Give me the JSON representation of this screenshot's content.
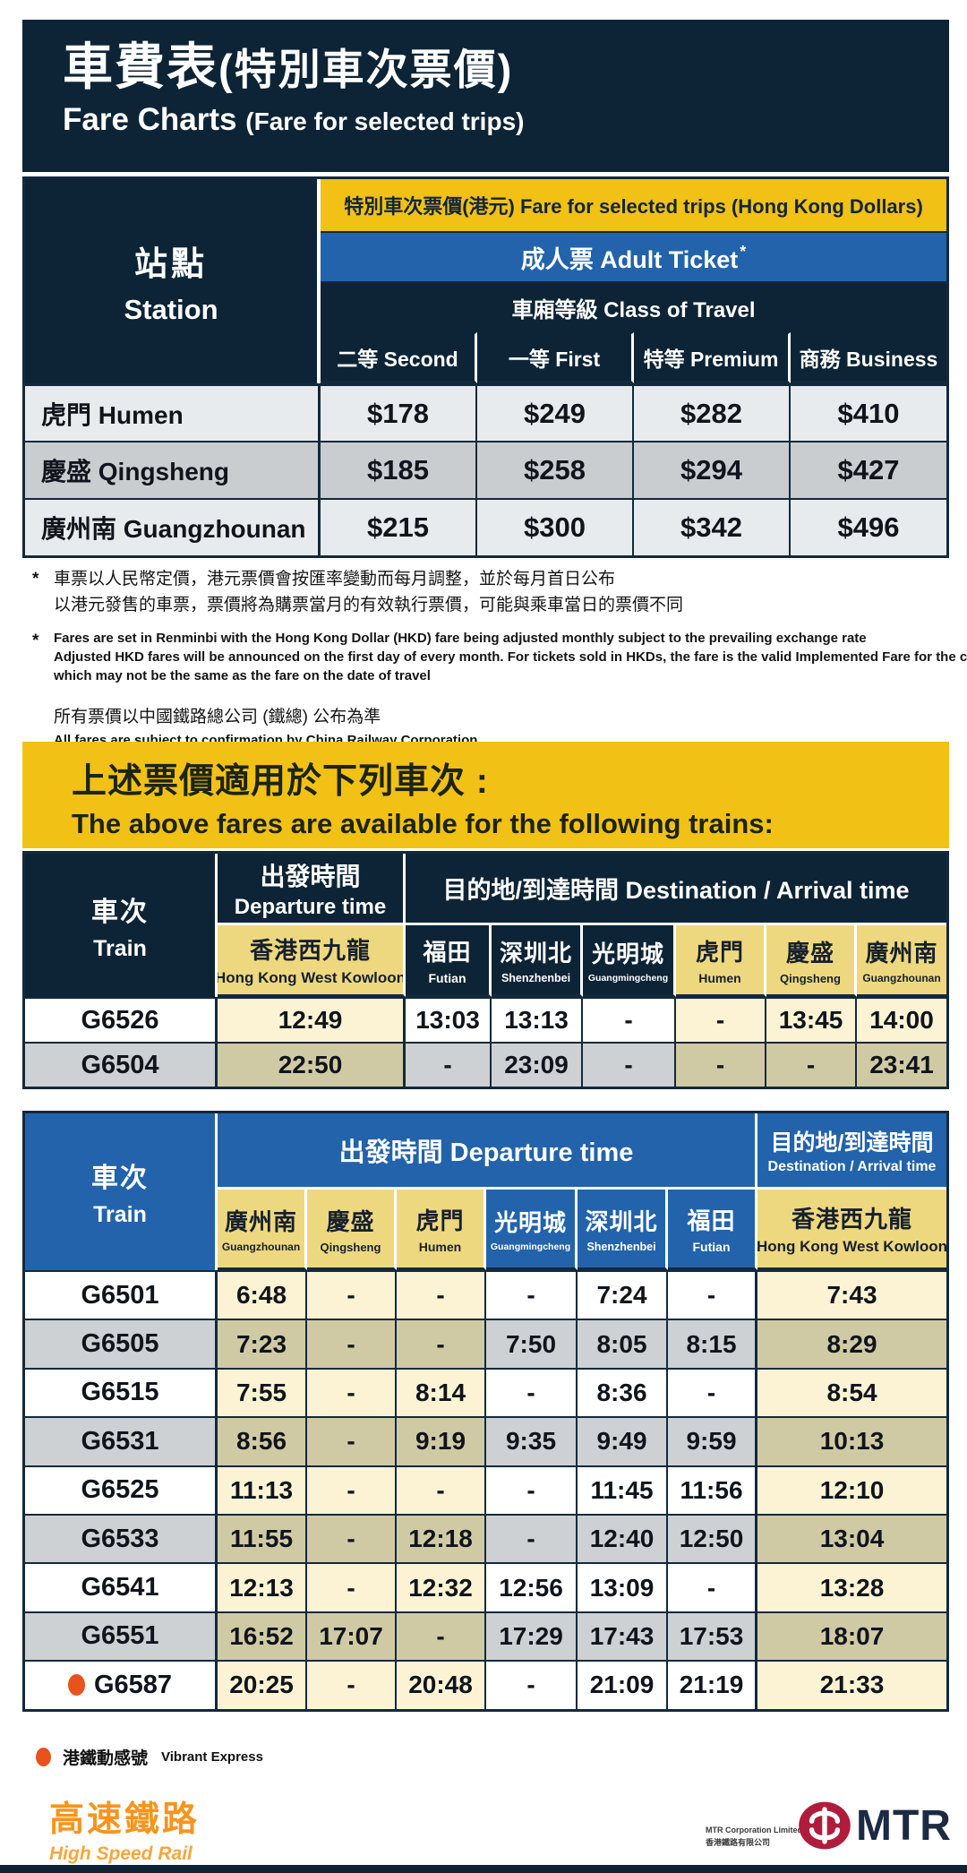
{
  "header": {
    "title_cjk_main": "車費表",
    "title_cjk_paren": "(特別車次票價)",
    "title_en_main": "Fare Charts",
    "title_en_paren": "(Fare for selected trips)"
  },
  "fare_table": {
    "station_cjk": "站點",
    "station_en": "Station",
    "band_fare": "特別車次票價(港元) Fare for selected trips (Hong Kong Dollars)",
    "band_adult": "成人票 Adult Ticket",
    "adult_asterisk": "*",
    "band_class": "車廂等級 Class of Travel",
    "class_headers": [
      "二等 Second",
      "一等 First",
      "特等 Premium",
      "商務 Business"
    ],
    "rows": [
      {
        "station": "虎門 Humen",
        "fares": [
          "$178",
          "$249",
          "$282",
          "$410"
        ]
      },
      {
        "station": "慶盛 Qingsheng",
        "fares": [
          "$185",
          "$258",
          "$294",
          "$427"
        ]
      },
      {
        "station": "廣州南 Guangzhounan",
        "fares": [
          "$215",
          "$300",
          "$342",
          "$496"
        ]
      }
    ]
  },
  "footnotes": {
    "marker": "*",
    "cjk1_line1": "車票以人民幣定價，港元票價會按匯率變動而每月調整，並於每月首日公布",
    "cjk1_line2": "以港元發售的車票，票價將為購票當月的有效執行票價，可能與乘車當日的票價不同",
    "en1_line1": "Fares are set in Renminbi with the Hong Kong Dollar (HKD) fare being adjusted monthly subject to the prevailing exchange rate",
    "en1_line2": "Adjusted HKD fares will be announced on the first day of every month.  For tickets sold in HKDs, the fare is the valid Implemented Fare for the current month",
    "en1_line3": "which may not be the same as the fare on the date of travel",
    "cjk2": "所有票價以中國鐵路總公司 (鐵總) 公布為準",
    "en2": "All fares are subject to confirmation by China Railway Corporation"
  },
  "banner": {
    "cjk": "上述票價適用於下列車次 :",
    "en": "The above fares are available for the following trains:"
  },
  "table1": {
    "train_cjk": "車次",
    "train_en": "Train",
    "departure_cjk": "出發時間",
    "departure_en": "Departure time",
    "destination_group": "目的地/到達時間 Destination / Arrival time",
    "stations": [
      {
        "cjk": "香港西九龍",
        "en": "Hong Kong West Kowloon",
        "highlight": true
      },
      {
        "cjk": "福田",
        "en": "Futian",
        "highlight": false
      },
      {
        "cjk": "深圳北",
        "en": "Shenzhenbei",
        "highlight": false
      },
      {
        "cjk": "光明城",
        "en": "Guangmingcheng",
        "highlight": false
      },
      {
        "cjk": "虎門",
        "en": "Humen",
        "highlight": true
      },
      {
        "cjk": "慶盛",
        "en": "Qingsheng",
        "highlight": true
      },
      {
        "cjk": "廣州南",
        "en": "Guangzhounan",
        "highlight": true
      }
    ],
    "rows": [
      {
        "train": "G6526",
        "vibrant": false,
        "times": [
          "12:49",
          "13:03",
          "13:13",
          "-",
          "-",
          "13:45",
          "14:00"
        ]
      },
      {
        "train": "G6504",
        "vibrant": false,
        "times": [
          "22:50",
          "-",
          "23:09",
          "-",
          "-",
          "-",
          "23:41"
        ]
      }
    ]
  },
  "table2": {
    "train_cjk": "車次",
    "train_en": "Train",
    "departure_group": "出發時間 Departure time",
    "destination_cjk": "目的地/到達時間",
    "destination_en": "Destination / Arrival time",
    "stations": [
      {
        "cjk": "廣州南",
        "en": "Guangzhounan",
        "highlight": true
      },
      {
        "cjk": "慶盛",
        "en": "Qingsheng",
        "highlight": true
      },
      {
        "cjk": "虎門",
        "en": "Humen",
        "highlight": true
      },
      {
        "cjk": "光明城",
        "en": "Guangmingcheng",
        "highlight": false
      },
      {
        "cjk": "深圳北",
        "en": "Shenzhenbei",
        "highlight": false
      },
      {
        "cjk": "福田",
        "en": "Futian",
        "highlight": false
      },
      {
        "cjk": "香港西九龍",
        "en": "Hong Kong West Kowloon",
        "highlight": true
      }
    ],
    "rows": [
      {
        "train": "G6501",
        "vibrant": false,
        "times": [
          "6:48",
          "-",
          "-",
          "-",
          "7:24",
          "-",
          "7:43"
        ]
      },
      {
        "train": "G6505",
        "vibrant": false,
        "times": [
          "7:23",
          "-",
          "-",
          "7:50",
          "8:05",
          "8:15",
          "8:29"
        ]
      },
      {
        "train": "G6515",
        "vibrant": false,
        "times": [
          "7:55",
          "-",
          "8:14",
          "-",
          "8:36",
          "-",
          "8:54"
        ]
      },
      {
        "train": "G6531",
        "vibrant": false,
        "times": [
          "8:56",
          "-",
          "9:19",
          "9:35",
          "9:49",
          "9:59",
          "10:13"
        ]
      },
      {
        "train": "G6525",
        "vibrant": false,
        "times": [
          "11:13",
          "-",
          "-",
          "-",
          "11:45",
          "11:56",
          "12:10"
        ]
      },
      {
        "train": "G6533",
        "vibrant": false,
        "times": [
          "11:55",
          "-",
          "12:18",
          "-",
          "12:40",
          "12:50",
          "13:04"
        ]
      },
      {
        "train": "G6541",
        "vibrant": false,
        "times": [
          "12:13",
          "-",
          "12:32",
          "12:56",
          "13:09",
          "-",
          "13:28"
        ]
      },
      {
        "train": "G6551",
        "vibrant": false,
        "times": [
          "16:52",
          "17:07",
          "-",
          "17:29",
          "17:43",
          "17:53",
          "18:07"
        ]
      },
      {
        "train": "G6587",
        "vibrant": true,
        "times": [
          "20:25",
          "-",
          "20:48",
          "-",
          "21:09",
          "21:19",
          "21:33"
        ]
      }
    ]
  },
  "legend": {
    "cjk": "港鐵動感號",
    "en": "Vibrant Express"
  },
  "footer": {
    "hsr_cjk": "高速鐵路",
    "hsr_en": "High Speed Rail",
    "mtr_small_en": "MTR Corporation Limited",
    "mtr_small_cjk": "香港鐵路有限公司",
    "mtr_word": "MTR"
  },
  "colors": {
    "navy": "#0d2436",
    "blue": "#2263ac",
    "gold": "#f2c115",
    "station_yellow": "#eed87f",
    "cream_highlight": "#fbf3d3",
    "khaki_highlight": "#d0caa4",
    "row_gray": "#ced1d3",
    "fare_row_light": "#e8ebed",
    "fare_row_dark": "#c9cdd0",
    "vibrant_orange": "#e8531d",
    "hsr_orange": "#f7941d",
    "mtr_red": "#b01d3c"
  }
}
